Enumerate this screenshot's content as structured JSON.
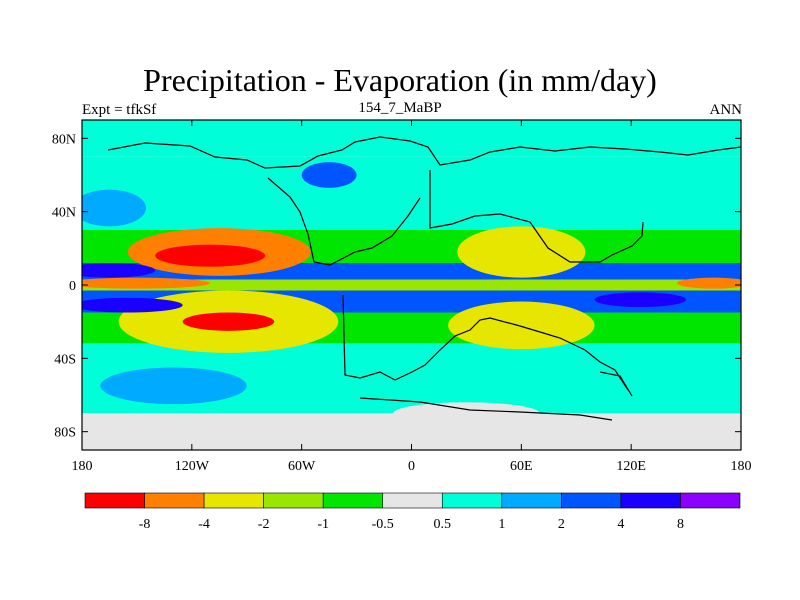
{
  "chart_data": {
    "type": "heatmap",
    "projection": "cylindrical-equidistant",
    "title": "Precipitation - Evaporation (in mm/day)",
    "subtitle_left": "Expt = tfkSf",
    "subtitle_center": "154_7_MaBP",
    "subtitle_right": "ANN",
    "xlim": [
      -180,
      180
    ],
    "ylim": [
      -90,
      90
    ],
    "x_ticks": [
      {
        "value": -180,
        "label": "180"
      },
      {
        "value": -120,
        "label": "120W"
      },
      {
        "value": -60,
        "label": "60W"
      },
      {
        "value": 0,
        "label": "0"
      },
      {
        "value": 60,
        "label": "60E"
      },
      {
        "value": 120,
        "label": "120E"
      },
      {
        "value": 180,
        "label": "180"
      }
    ],
    "y_ticks": [
      {
        "value": 80,
        "label": "80N"
      },
      {
        "value": 40,
        "label": "40N"
      },
      {
        "value": 0,
        "label": "0"
      },
      {
        "value": -40,
        "label": "40S"
      },
      {
        "value": -80,
        "label": "80S"
      }
    ],
    "levels": [
      "-8",
      "-4",
      "-2",
      "-1",
      "-0.5",
      "0.5",
      "1",
      "2",
      "4",
      "8"
    ],
    "colors": [
      "#ff0000",
      "#ff7f00",
      "#e6e600",
      "#99e600",
      "#00e600",
      "#e6e6e6",
      "#00ffd9",
      "#00aaff",
      "#0055ff",
      "#1a00ff",
      "#8c00ff"
    ],
    "regions": [
      {
        "name": "eastern-pacific-north-dry",
        "class": 1,
        "cx": -105,
        "cy": 18,
        "rx": 50,
        "ry": 13
      },
      {
        "name": "eastern-pacific-north-core",
        "class": 0,
        "cx": -110,
        "cy": 16,
        "rx": 30,
        "ry": 6
      },
      {
        "name": "eastern-pacific-south-dry",
        "class": 2,
        "cx": -100,
        "cy": -20,
        "rx": 60,
        "ry": 17
      },
      {
        "name": "eastern-pacific-south-core",
        "class": 0,
        "cx": -100,
        "cy": -20,
        "rx": 25,
        "ry": 5
      },
      {
        "name": "equatorial-pacific-west-wet",
        "class": 9,
        "cx": -165,
        "cy": 8,
        "rx": 25,
        "ry": 4
      },
      {
        "name": "equatorial-pacific-east-dry",
        "class": 1,
        "cx": -150,
        "cy": 1,
        "rx": 40,
        "ry": 3
      },
      {
        "name": "south-pacific-wet-band",
        "class": 9,
        "cx": -155,
        "cy": -11,
        "rx": 30,
        "ry": 4
      },
      {
        "name": "north-pacific-storm-track",
        "class": 7,
        "cx": -165,
        "cy": 42,
        "rx": 20,
        "ry": 10
      },
      {
        "name": "north-atlantic-storm-track",
        "class": 8,
        "cx": -45,
        "cy": 60,
        "rx": 15,
        "ry": 7
      },
      {
        "name": "southern-ocean-wet",
        "class": 7,
        "cx": -130,
        "cy": -55,
        "rx": 40,
        "ry": 10
      },
      {
        "name": "tethys-north-land-dry",
        "class": 2,
        "cx": 60,
        "cy": 18,
        "rx": 35,
        "ry": 14
      },
      {
        "name": "tethys-south-land-dry",
        "class": 2,
        "cx": 60,
        "cy": -22,
        "rx": 40,
        "ry": 13
      },
      {
        "name": "indian-ocean-wet",
        "class": 8,
        "cx": 115,
        "cy": -10,
        "rx": 25,
        "ry": 5
      },
      {
        "name": "western-pacific-wet",
        "class": 9,
        "cx": 125,
        "cy": -8,
        "rx": 25,
        "ry": 4
      },
      {
        "name": "western-pacific-north-dry",
        "class": 1,
        "cx": 165,
        "cy": 1,
        "rx": 20,
        "ry": 3
      },
      {
        "name": "antarctic-land",
        "class": 5,
        "cx": 30,
        "cy": -70,
        "rx": 40,
        "ry": 6
      }
    ]
  }
}
